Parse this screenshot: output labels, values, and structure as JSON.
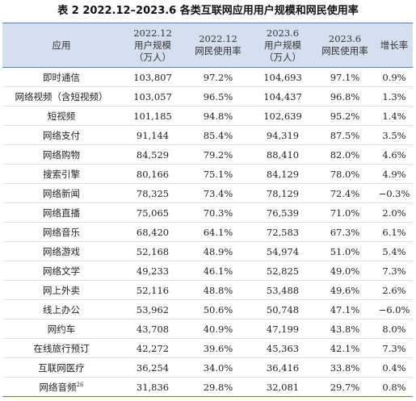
{
  "title": "表 2  2022.12–2023.6 各类互联网应用用户规模和网民使用率",
  "headers": {
    "app": "应用",
    "users_2022_line1": "2022.12",
    "users_2022_line2": "用户规模",
    "users_2022_line3": "（万人）",
    "rate_2022_line1": "2022.12",
    "rate_2022_line2": "网民使用率",
    "users_2023_line1": "2023.6",
    "users_2023_line2": "用户规模",
    "users_2023_line3": "（万人）",
    "rate_2023_line1": "2023.6",
    "rate_2023_line2": "网民使用率",
    "growth": "增长率"
  },
  "rows": [
    {
      "app": "即时通信",
      "note": "",
      "u2022": "103,807",
      "r2022": "97.2%",
      "u2023": "104,693",
      "r2023": "97.1%",
      "growth": "0.9%"
    },
    {
      "app": "网络视频（含短视频）",
      "note": "",
      "u2022": "103,057",
      "r2022": "96.5%",
      "u2023": "104,437",
      "r2023": "96.8%",
      "growth": "1.3%"
    },
    {
      "app": "短视频",
      "note": "",
      "u2022": "101,185",
      "r2022": "94.8%",
      "u2023": "102,639",
      "r2023": "95.2%",
      "growth": "1.4%"
    },
    {
      "app": "网络支付",
      "note": "",
      "u2022": "91,144",
      "r2022": "85.4%",
      "u2023": "94,319",
      "r2023": "87.5%",
      "growth": "3.5%"
    },
    {
      "app": "网络购物",
      "note": "",
      "u2022": "84,529",
      "r2022": "79.2%",
      "u2023": "88,410",
      "r2023": "82.0%",
      "growth": "4.6%"
    },
    {
      "app": "搜索引擎",
      "note": "",
      "u2022": "80,166",
      "r2022": "75.1%",
      "u2023": "84,129",
      "r2023": "78.0%",
      "growth": "4.9%"
    },
    {
      "app": "网络新闻",
      "note": "",
      "u2022": "78,325",
      "r2022": "73.4%",
      "u2023": "78,129",
      "r2023": "72.4%",
      "growth": "−0.3%"
    },
    {
      "app": "网络直播",
      "note": "",
      "u2022": "75,065",
      "r2022": "70.3%",
      "u2023": "76,539",
      "r2023": "71.0%",
      "growth": "2.0%"
    },
    {
      "app": "网络音乐",
      "note": "",
      "u2022": "68,420",
      "r2022": "64.1%",
      "u2023": "72,583",
      "r2023": "67.3%",
      "growth": "6.1%"
    },
    {
      "app": "网络游戏",
      "note": "",
      "u2022": "52,168",
      "r2022": "48.9%",
      "u2023": "54,974",
      "r2023": "51.0%",
      "growth": "5.4%"
    },
    {
      "app": "网络文学",
      "note": "",
      "u2022": "49,233",
      "r2022": "46.1%",
      "u2023": "52,825",
      "r2023": "49.0%",
      "growth": "7.3%"
    },
    {
      "app": "网上外卖",
      "note": "",
      "u2022": "52,116",
      "r2022": "48.8%",
      "u2023": "53,488",
      "r2023": "49.6%",
      "growth": "2.6%"
    },
    {
      "app": "线上办公",
      "note": "",
      "u2022": "53,962",
      "r2022": "50.6%",
      "u2023": "50,748",
      "r2023": "47.1%",
      "growth": "−6.0%"
    },
    {
      "app": "网约车",
      "note": "",
      "u2022": "43,708",
      "r2022": "40.9%",
      "u2023": "47,199",
      "r2023": "43.8%",
      "growth": "8.0%"
    },
    {
      "app": "在线旅行预订",
      "note": "",
      "u2022": "42,272",
      "r2022": "39.6%",
      "u2023": "45,363",
      "r2023": "42.1%",
      "growth": "7.3%"
    },
    {
      "app": "互联网医疗",
      "note": "",
      "u2022": "36,254",
      "r2022": "34.0%",
      "u2023": "36,416",
      "r2023": "33.8%",
      "growth": "0.4%"
    },
    {
      "app": "网络音频",
      "note": "26",
      "u2022": "31,836",
      "r2022": "29.8%",
      "u2023": "32,081",
      "r2023": "29.7%",
      "growth": "0.8%"
    }
  ],
  "colors": {
    "header_bg": "#d5dff0",
    "rule": "#5a7fb8"
  }
}
